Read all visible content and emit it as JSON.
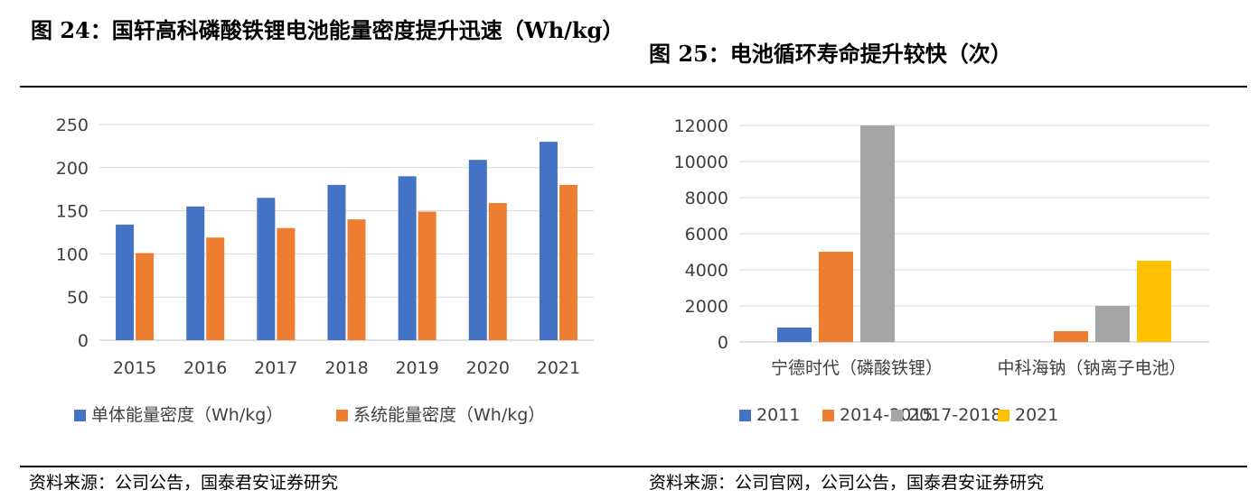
{
  "header": {
    "left_title": "图 24：国轩高科磷酸铁锂电池能量密度提升迅速（Wh/kg）",
    "right_title": "图 25：电池循环寿命提升较快（次）"
  },
  "footer": {
    "left_source": "资料来源：公司公告，国泰君安证券研究",
    "right_source": "资料来源：公司官网，公司公告，国泰君安证券研究"
  },
  "chart_data": [
    {
      "type": "bar",
      "categories": [
        "2015",
        "2016",
        "2017",
        "2018",
        "2019",
        "2020",
        "2021"
      ],
      "series": [
        {
          "name": "单体能量密度（Wh/kg）",
          "values": [
            134,
            155,
            165,
            180,
            190,
            209,
            230
          ],
          "color": "#4472C4"
        },
        {
          "name": "系统能量密度（Wh/kg）",
          "values": [
            101,
            119,
            130,
            140,
            149,
            159,
            180
          ],
          "color": "#ED7D31"
        }
      ],
      "yticks": [
        "0",
        "50",
        "100",
        "150",
        "200",
        "250"
      ],
      "ylim": [
        0,
        250
      ],
      "grid": true,
      "legend": "bottom"
    },
    {
      "type": "bar",
      "categories": [
        "宁德时代（磷酸铁锂）",
        "中科海钠（钠离子电池）"
      ],
      "series": [
        {
          "name": "2011",
          "values": [
            800,
            null
          ],
          "color": "#4472C4"
        },
        {
          "name": "2014-2015",
          "values": [
            5000,
            600
          ],
          "color": "#ED7D31"
        },
        {
          "name": "2017-2018",
          "values": [
            12000,
            2000
          ],
          "color": "#A5A5A5"
        },
        {
          "name": "2021",
          "values": [
            null,
            4500
          ],
          "color": "#FFC000"
        }
      ],
      "yticks": [
        "0",
        "2000",
        "4000",
        "6000",
        "8000",
        "10000",
        "12000"
      ],
      "ylim": [
        0,
        12000
      ],
      "grid": true,
      "legend": "bottom"
    }
  ]
}
